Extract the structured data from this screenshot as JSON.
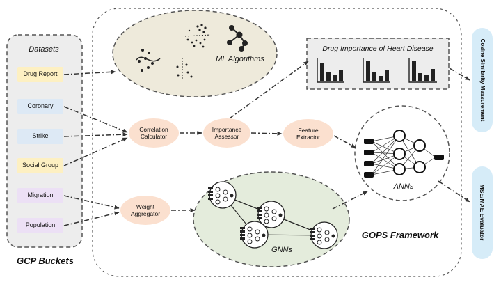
{
  "datasets": {
    "title": "Datasets",
    "footer": "GCP Buckets",
    "items": [
      {
        "label": "Drug Report",
        "color": "#fdf0c2"
      },
      {
        "label": "Coronary",
        "color": "#dde9f5"
      },
      {
        "label": "Strike",
        "color": "#dde9f5"
      },
      {
        "label": "Social Group",
        "color": "#fdf0c2"
      },
      {
        "label": "Migration",
        "color": "#ece0f5"
      },
      {
        "label": "Population",
        "color": "#ece0f5"
      }
    ]
  },
  "processes": {
    "correlation": {
      "line1": "Correlation",
      "line2": "Calculator"
    },
    "importance": {
      "line1": "Importance",
      "line2": "Assessor"
    },
    "feature": {
      "line1": "Feature",
      "line2": "Extractor"
    },
    "weight": {
      "line1": "Weight",
      "line2": "Aggregator"
    }
  },
  "ml_algorithms": "ML Algorithms",
  "drug_importance": "Drug Importance of Heart Disease",
  "anns": "ANNs",
  "gnns": "GNNs",
  "framework": "GOPS Framework",
  "outputs": {
    "cosine": "Cosine Similarity Measurement",
    "mse": "MSE/MAE Evaluator"
  },
  "colors": {
    "process_fill": "#fbe0cf",
    "ml_fill": "#eeeadb",
    "gnn_fill": "#e4ecdc",
    "output_fill": "#d6ecf8",
    "panel_fill": "#ededed"
  }
}
